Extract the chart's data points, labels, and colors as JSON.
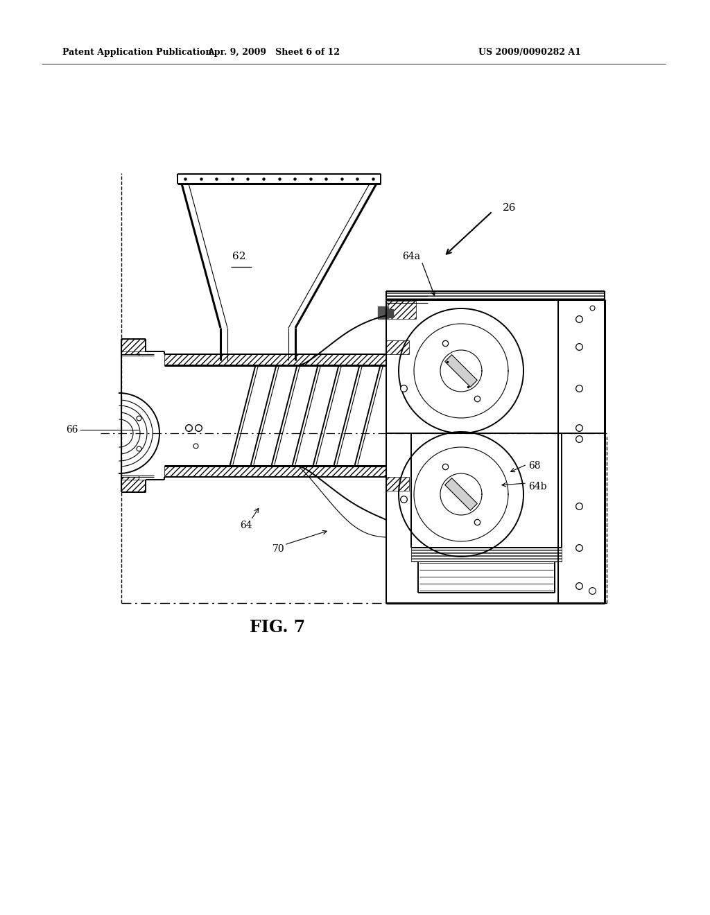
{
  "title": "FIG. 7",
  "header_left": "Patent Application Publication",
  "header_center": "Apr. 9, 2009   Sheet 6 of 12",
  "header_right": "US 2009/0090282 A1",
  "fig_width": 10.24,
  "fig_height": 13.2,
  "bg_color": "#ffffff",
  "line_color": "#000000"
}
